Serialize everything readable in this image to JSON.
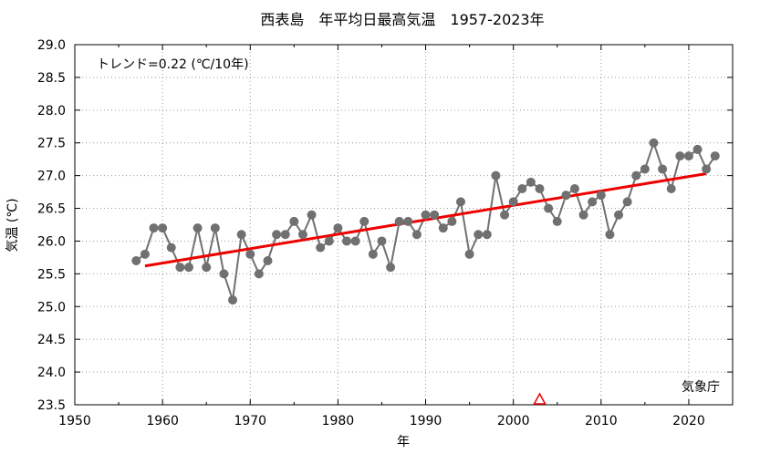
{
  "chart_data": {
    "type": "line",
    "title": "西表島　年平均日最高気温　1957-2023年",
    "xlabel": "年",
    "ylabel": "気温 (℃)",
    "annotation": "トレンド=0.22 (℃/10年)",
    "credit": "気象庁",
    "xlim": [
      1950,
      2025
    ],
    "ylim": [
      23.5,
      29.0
    ],
    "x_ticks": [
      1950,
      1960,
      1970,
      1980,
      1990,
      2000,
      2010,
      2020
    ],
    "y_ticks": [
      "23.5",
      "24.0",
      "24.5",
      "25.0",
      "25.5",
      "26.0",
      "26.5",
      "27.0",
      "27.5",
      "28.0",
      "28.5",
      "29.0"
    ],
    "grid": true,
    "series": [
      {
        "color": "#707070",
        "x": [
          1957,
          1958,
          1959,
          1960,
          1961,
          1962,
          1963,
          1964,
          1965,
          1966,
          1967,
          1968,
          1969,
          1970,
          1971,
          1972,
          1973,
          1974,
          1975,
          1976,
          1977,
          1978,
          1979,
          1980,
          1981,
          1982,
          1983,
          1984,
          1985,
          1986,
          1987,
          1988,
          1989,
          1990,
          1991,
          1992,
          1993,
          1994,
          1995,
          1996,
          1997,
          1998,
          1999,
          2000,
          2001,
          2002,
          2003,
          2004,
          2005,
          2006,
          2007,
          2008,
          2009,
          2010,
          2011,
          2012,
          2013,
          2014,
          2015,
          2016,
          2017,
          2018,
          2019,
          2020,
          2021,
          2022,
          2023
        ],
        "values": [
          25.7,
          25.8,
          26.2,
          26.2,
          25.9,
          25.6,
          25.6,
          26.2,
          25.6,
          26.2,
          25.5,
          25.1,
          26.1,
          25.8,
          25.5,
          25.7,
          26.1,
          26.1,
          26.3,
          26.1,
          26.4,
          25.9,
          26.0,
          26.2,
          26.0,
          26.0,
          26.3,
          25.8,
          26.0,
          25.6,
          26.3,
          26.3,
          26.1,
          26.4,
          26.4,
          26.2,
          26.3,
          26.6,
          25.8,
          26.1,
          26.1,
          27.0,
          26.4,
          26.6,
          26.8,
          26.9,
          26.8,
          26.5,
          26.3,
          26.7,
          26.8,
          26.4,
          26.6,
          26.7,
          26.1,
          26.4,
          26.6,
          27.0,
          27.1,
          27.5,
          27.1,
          26.8,
          27.3,
          27.3,
          27.4,
          27.1,
          27.3
        ]
      }
    ],
    "trend": {
      "color": "#ee0000",
      "x": [
        1958,
        2022
      ],
      "y": [
        25.62,
        27.03
      ]
    },
    "marker": {
      "type": "triangle",
      "color": "#ee0000",
      "x": 2003
    }
  }
}
